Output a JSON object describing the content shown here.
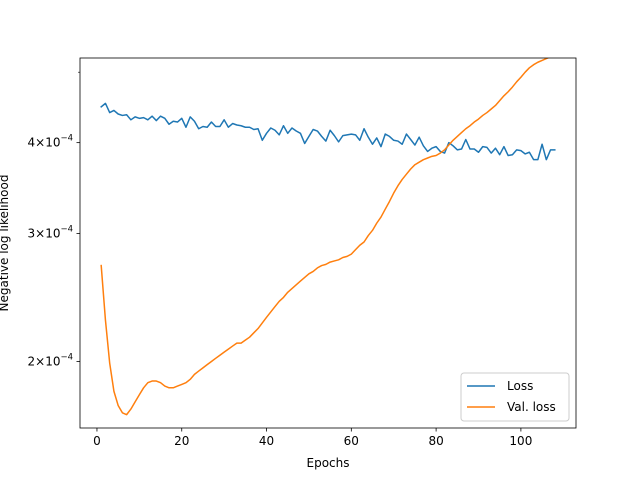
{
  "chart_data": {
    "type": "line",
    "xlabel": "Epochs",
    "ylabel": "Negative log likelihood",
    "y_scale": "log",
    "xlim": [
      -4,
      113
    ],
    "ylim": [
      0.000162,
      0.000523
    ],
    "x_ticks": [
      0,
      20,
      40,
      60,
      80,
      100
    ],
    "y_ticks": [
      {
        "value": 0.0002,
        "mantissa": "2",
        "exponent": "−4"
      },
      {
        "value": 0.0003,
        "mantissa": "3",
        "exponent": "−4"
      },
      {
        "value": 0.0004,
        "mantissa": "4",
        "exponent": "−4"
      }
    ],
    "y_minor_ticks": [
      0.0005
    ],
    "grid": false,
    "legend_position": "lower right",
    "series": [
      {
        "name": "Loss",
        "color": "#1f77b4",
        "x": [
          1,
          2,
          3,
          4,
          5,
          6,
          7,
          8,
          9,
          10,
          11,
          12,
          13,
          14,
          15,
          16,
          17,
          18,
          19,
          20,
          21,
          22,
          23,
          24,
          25,
          26,
          27,
          28,
          29,
          30,
          31,
          32,
          33,
          34,
          35,
          36,
          37,
          38,
          39,
          40,
          41,
          42,
          43,
          44,
          45,
          46,
          47,
          48,
          49,
          50,
          51,
          52,
          53,
          54,
          55,
          56,
          57,
          58,
          59,
          60,
          61,
          62,
          63,
          64,
          65,
          66,
          67,
          68,
          69,
          70,
          71,
          72,
          73,
          74,
          75,
          76,
          77,
          78,
          79,
          80,
          81,
          82,
          83,
          84,
          85,
          86,
          87,
          88,
          89,
          90,
          91,
          92,
          93,
          94,
          95,
          96,
          97,
          98,
          99,
          100,
          101,
          102,
          103,
          104,
          105,
          106,
          107,
          108
        ],
        "values": [
          0.000448,
          0.000453,
          0.00044,
          0.000443,
          0.000438,
          0.000436,
          0.000437,
          0.00043,
          0.000434,
          0.000432,
          0.000433,
          0.00043,
          0.000435,
          0.000429,
          0.000435,
          0.000432,
          0.000424,
          0.000428,
          0.000427,
          0.000432,
          0.00042,
          0.000434,
          0.000428,
          0.000418,
          0.000421,
          0.00042,
          0.000427,
          0.000421,
          0.000421,
          0.00043,
          0.00042,
          0.000425,
          0.000423,
          0.000422,
          0.00042,
          0.00042,
          0.000417,
          0.000418,
          0.000403,
          0.000412,
          0.000419,
          0.000416,
          0.00041,
          0.000422,
          0.000412,
          0.000419,
          0.000415,
          0.000412,
          0.000399,
          0.000408,
          0.000417,
          0.000415,
          0.000408,
          0.000402,
          0.000416,
          0.000409,
          0.000401,
          0.000409,
          0.00041,
          0.000411,
          0.00041,
          0.000403,
          0.000418,
          0.000407,
          0.000398,
          0.000406,
          0.000395,
          0.000411,
          0.000408,
          0.000403,
          0.000402,
          0.000398,
          0.000411,
          0.000404,
          0.000397,
          0.000407,
          0.000396,
          0.000389,
          0.000393,
          0.000395,
          0.000389,
          0.000387,
          0.0004,
          0.000396,
          0.000391,
          0.000392,
          0.000404,
          0.000392,
          0.000392,
          0.000388,
          0.000395,
          0.000394,
          0.000387,
          0.000393,
          0.000385,
          0.000395,
          0.000384,
          0.000385,
          0.000391,
          0.00039,
          0.000386,
          0.000388,
          0.000379,
          0.000379,
          0.000398,
          0.000379,
          0.000391,
          0.000391
        ]
      },
      {
        "name": "Val. loss",
        "color": "#ff7f0e",
        "x": [
          1,
          2,
          3,
          4,
          5,
          6,
          7,
          8,
          9,
          10,
          11,
          12,
          13,
          14,
          15,
          16,
          17,
          18,
          19,
          20,
          21,
          22,
          23,
          24,
          25,
          26,
          27,
          28,
          29,
          30,
          31,
          32,
          33,
          34,
          35,
          36,
          37,
          38,
          39,
          40,
          41,
          42,
          43,
          44,
          45,
          46,
          47,
          48,
          49,
          50,
          51,
          52,
          53,
          54,
          55,
          56,
          57,
          58,
          59,
          60,
          61,
          62,
          63,
          64,
          65,
          66,
          67,
          68,
          69,
          70,
          71,
          72,
          73,
          74,
          75,
          76,
          77,
          78,
          79,
          80,
          81,
          82,
          83,
          84,
          85,
          86,
          87,
          88,
          89,
          90,
          91,
          92,
          93,
          94,
          95,
          96,
          97,
          98,
          99,
          100,
          101,
          102,
          103,
          104,
          105,
          106,
          107,
          108
        ],
        "values": [
          0.000271,
          0.000228,
          0.000199,
          0.000182,
          0.000174,
          0.00017,
          0.000169,
          0.000172,
          0.000176,
          0.00018,
          0.000184,
          0.000187,
          0.000188,
          0.000188,
          0.000187,
          0.000185,
          0.000184,
          0.000184,
          0.000185,
          0.000186,
          0.000187,
          0.000189,
          0.000192,
          0.000194,
          0.000196,
          0.000198,
          0.0002,
          0.000202,
          0.000204,
          0.000206,
          0.000208,
          0.00021,
          0.000212,
          0.000212,
          0.000214,
          0.000216,
          0.000219,
          0.000222,
          0.000226,
          0.00023,
          0.000234,
          0.000238,
          0.000242,
          0.000245,
          0.000249,
          0.000252,
          0.000255,
          0.000258,
          0.000261,
          0.000264,
          0.000266,
          0.000269,
          0.000271,
          0.000272,
          0.000274,
          0.000275,
          0.000276,
          0.000278,
          0.000279,
          0.000281,
          0.000285,
          0.000289,
          0.000292,
          0.000298,
          0.000303,
          0.00031,
          0.000316,
          0.000324,
          0.000332,
          0.000341,
          0.000349,
          0.000356,
          0.000362,
          0.000368,
          0.000373,
          0.000376,
          0.000379,
          0.000381,
          0.000383,
          0.000384,
          0.000387,
          0.000391,
          0.000397,
          0.000403,
          0.000408,
          0.000413,
          0.000418,
          0.000422,
          0.000427,
          0.000431,
          0.000436,
          0.00044,
          0.000445,
          0.00045,
          0.000457,
          0.000464,
          0.00047,
          0.000477,
          0.000485,
          0.000492,
          0.0005,
          0.000507,
          0.000512,
          0.000516,
          0.000519,
          0.000522,
          0.000525,
          0.000531
        ]
      }
    ]
  }
}
